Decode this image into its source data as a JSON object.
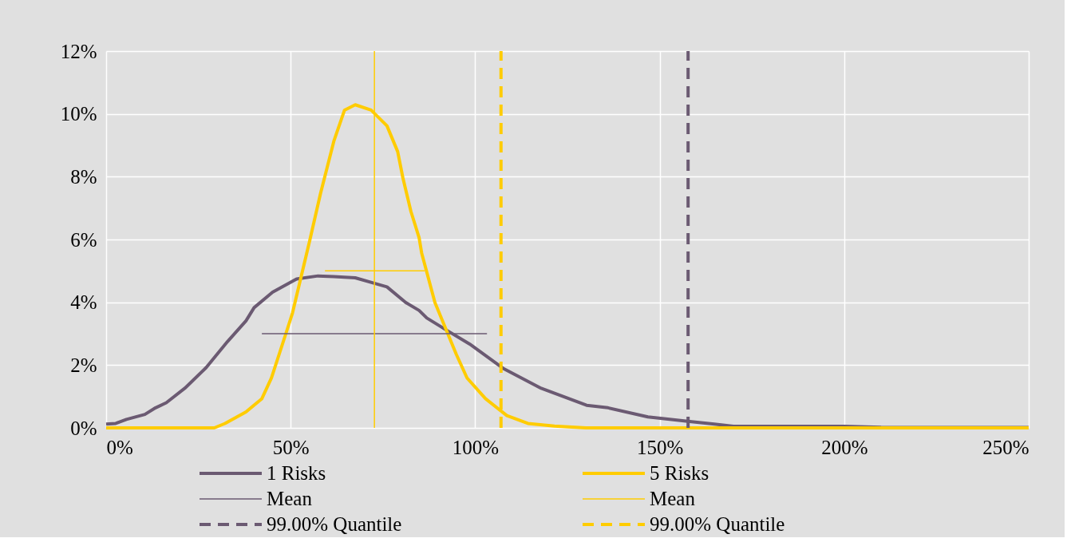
{
  "chart_data": {
    "type": "line",
    "legend": "bottom",
    "grid": true,
    "xlim": [
      0,
      250
    ],
    "xticks": [
      {
        "value": 0,
        "label": "0%"
      },
      {
        "value": 50,
        "label": "50%"
      },
      {
        "value": 100,
        "label": "100%"
      },
      {
        "value": 150,
        "label": "150%"
      },
      {
        "value": 200,
        "label": "200%"
      },
      {
        "value": 250,
        "label": "250%"
      }
    ],
    "ylim": [
      0,
      12
    ],
    "yticks": [
      {
        "value": 0,
        "label": "0%"
      },
      {
        "value": 2,
        "label": "2%"
      },
      {
        "value": 4,
        "label": "4%"
      },
      {
        "value": 6,
        "label": "6%"
      },
      {
        "value": 8,
        "label": "8%"
      },
      {
        "value": 10,
        "label": "10%"
      },
      {
        "value": 12,
        "label": "12%"
      }
    ],
    "ref_lines": [
      {
        "axis": "x",
        "value": 72.7,
        "color": "#ffcc00",
        "line_style": "solid"
      }
    ],
    "series": [
      {
        "name": "1 Risks",
        "color": "#6b5a72",
        "line_style": "solid",
        "x": [
          0,
          2.6,
          5.5,
          10.5,
          13.4,
          16.3,
          21.3,
          27.1,
          32.9,
          37.9,
          40.1,
          45.1,
          51.6,
          57.4,
          61.7,
          67.5,
          72.5,
          76.1,
          81.2,
          84.8,
          86.9,
          92.7,
          98.5,
          107.8,
          117.9,
          130.2,
          136,
          146.8,
          157.6,
          164.8,
          170,
          200,
          210,
          250
        ],
        "values": [
          0.12,
          0.14,
          0.27,
          0.43,
          0.64,
          0.8,
          1.26,
          1.92,
          2.75,
          3.41,
          3.83,
          4.32,
          4.74,
          4.84,
          4.82,
          4.78,
          4.61,
          4.49,
          3.99,
          3.74,
          3.5,
          3.08,
          2.67,
          1.88,
          1.26,
          0.72,
          0.64,
          0.35,
          0.21,
          0.12,
          0.05,
          0.05,
          0.02,
          0.01
        ]
      },
      {
        "name": "5 Risks",
        "color": "#ffcc00",
        "line_style": "solid",
        "x": [
          0,
          29.3,
          32.2,
          37.9,
          42.2,
          44.8,
          48.7,
          50.5,
          55.2,
          58.1,
          61.7,
          64.6,
          67.5,
          71.8,
          76.1,
          79,
          80.4,
          82.6,
          84.8,
          85.5,
          89.1,
          94.9,
          97.8,
          102.8,
          108.6,
          114.3,
          121.5,
          130,
          250
        ],
        "values": [
          0,
          0,
          0.14,
          0.51,
          0.93,
          1.59,
          3,
          3.66,
          5.98,
          7.47,
          9.13,
          10.12,
          10.29,
          10.12,
          9.62,
          8.8,
          7.97,
          6.89,
          6.06,
          5.57,
          3.99,
          2.34,
          1.59,
          0.93,
          0.39,
          0.14,
          0.06,
          0,
          0
        ]
      },
      {
        "name": "Mean",
        "color": "#6b5a72",
        "line_style": "solid",
        "x": [
          42.2,
          103.2
        ],
        "values": [
          3,
          3
        ]
      },
      {
        "name": "Mean",
        "color": "#ffcc00",
        "line_style": "solid",
        "x": [
          59.3,
          86.3
        ],
        "values": [
          5,
          5
        ]
      },
      {
        "name": "99.00% Quantile",
        "color": "#6b5a72",
        "line_style": "dashed",
        "x": [
          157.7,
          157.7
        ],
        "values": [
          0,
          12
        ]
      },
      {
        "name": "99.00% Quantile",
        "color": "#ffcc00",
        "line_style": "dashed",
        "x": [
          107,
          107
        ],
        "values": [
          0,
          12
        ]
      }
    ]
  }
}
